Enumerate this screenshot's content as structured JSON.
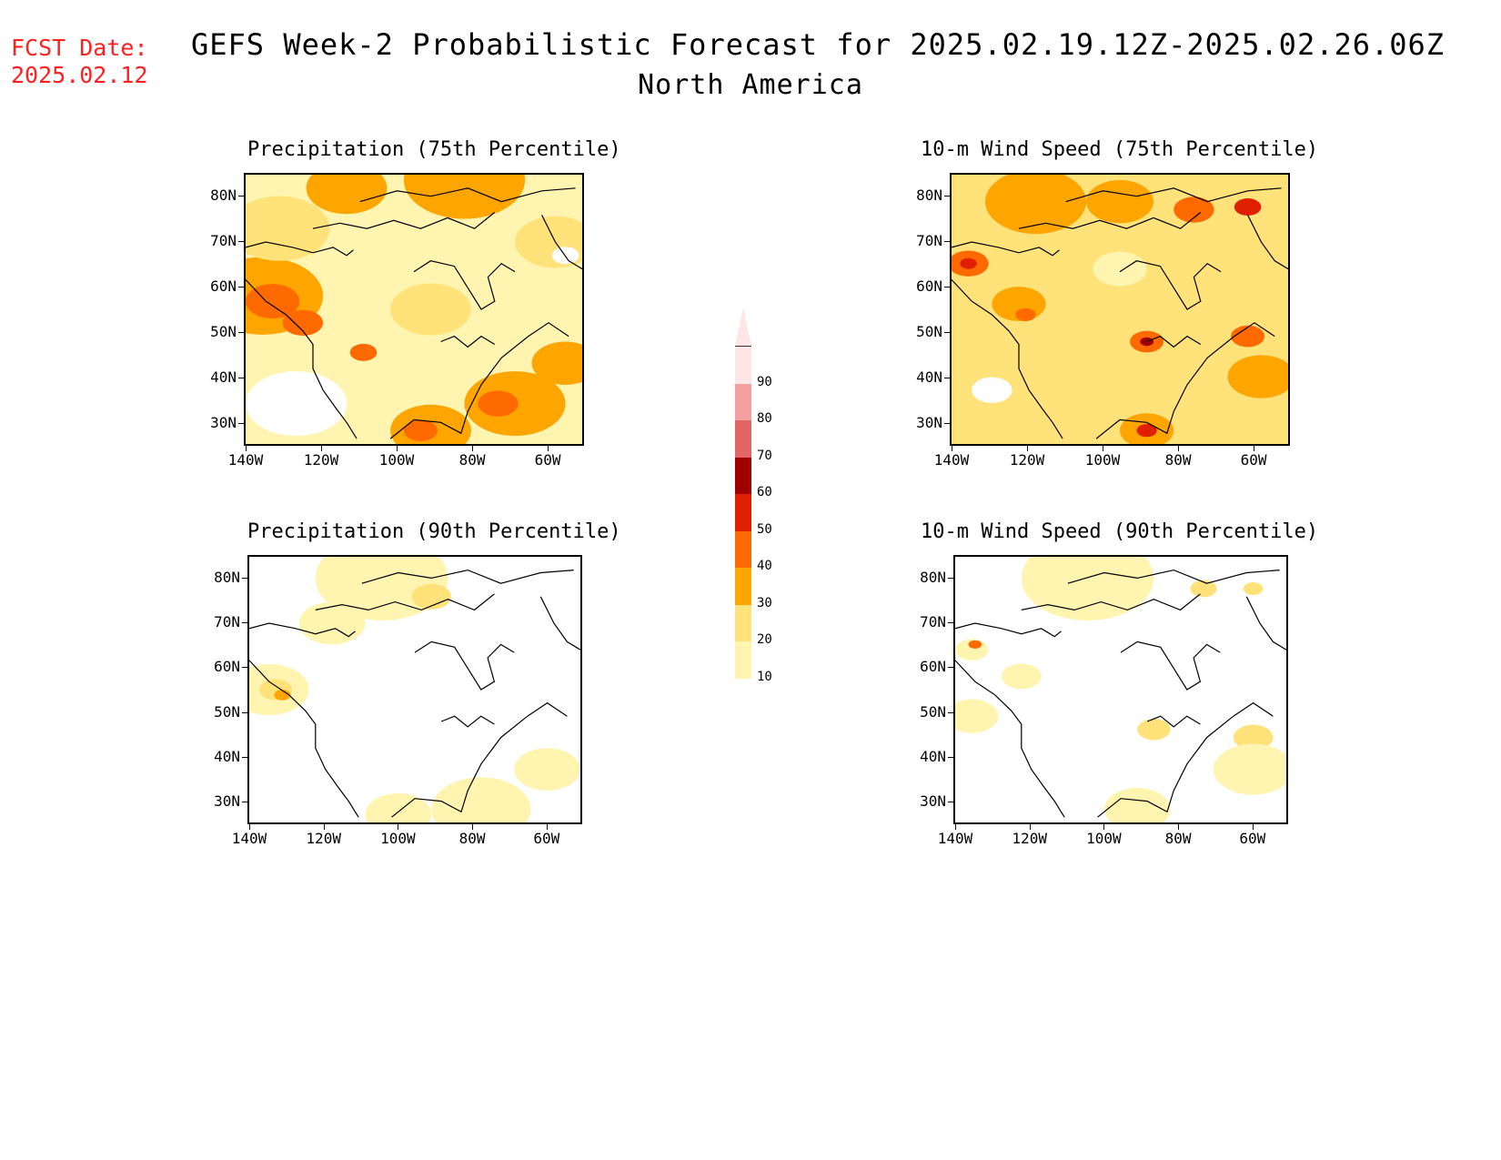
{
  "header": {
    "fcst_label": "FCST Date:",
    "fcst_date": "2025.02.12",
    "title": "GEFS Week-2 Probabilistic Forecast for 2025.02.19.12Z-2025.02.26.06Z",
    "subtitle": "North America"
  },
  "colors": {
    "c10": "#fff5b0",
    "c20": "#ffe37a",
    "c30": "#ffa500",
    "c40": "#ff6a00",
    "c50": "#e02000",
    "c60": "#a00000",
    "c70": "#e06666",
    "c80": "#f4a0a0",
    "c90": "#ffe6e6"
  },
  "legend": {
    "levels": [
      "10",
      "20",
      "30",
      "40",
      "50",
      "60",
      "70",
      "80",
      "90"
    ]
  },
  "axes": {
    "lat_labels": [
      "80N",
      "70N",
      "60N",
      "50N",
      "40N",
      "30N"
    ],
    "lon_labels": [
      "140W",
      "120W",
      "100W",
      "80W",
      "60W"
    ]
  },
  "panels": [
    {
      "id": "precip75",
      "title": "Precipitation (75th Percentile)"
    },
    {
      "id": "wind75",
      "title": "10-m Wind Speed (75th Percentile)"
    },
    {
      "id": "precip90",
      "title": "Precipitation (90th Percentile)"
    },
    {
      "id": "wind90",
      "title": "10-m Wind Speed (90th Percentile)"
    }
  ]
}
